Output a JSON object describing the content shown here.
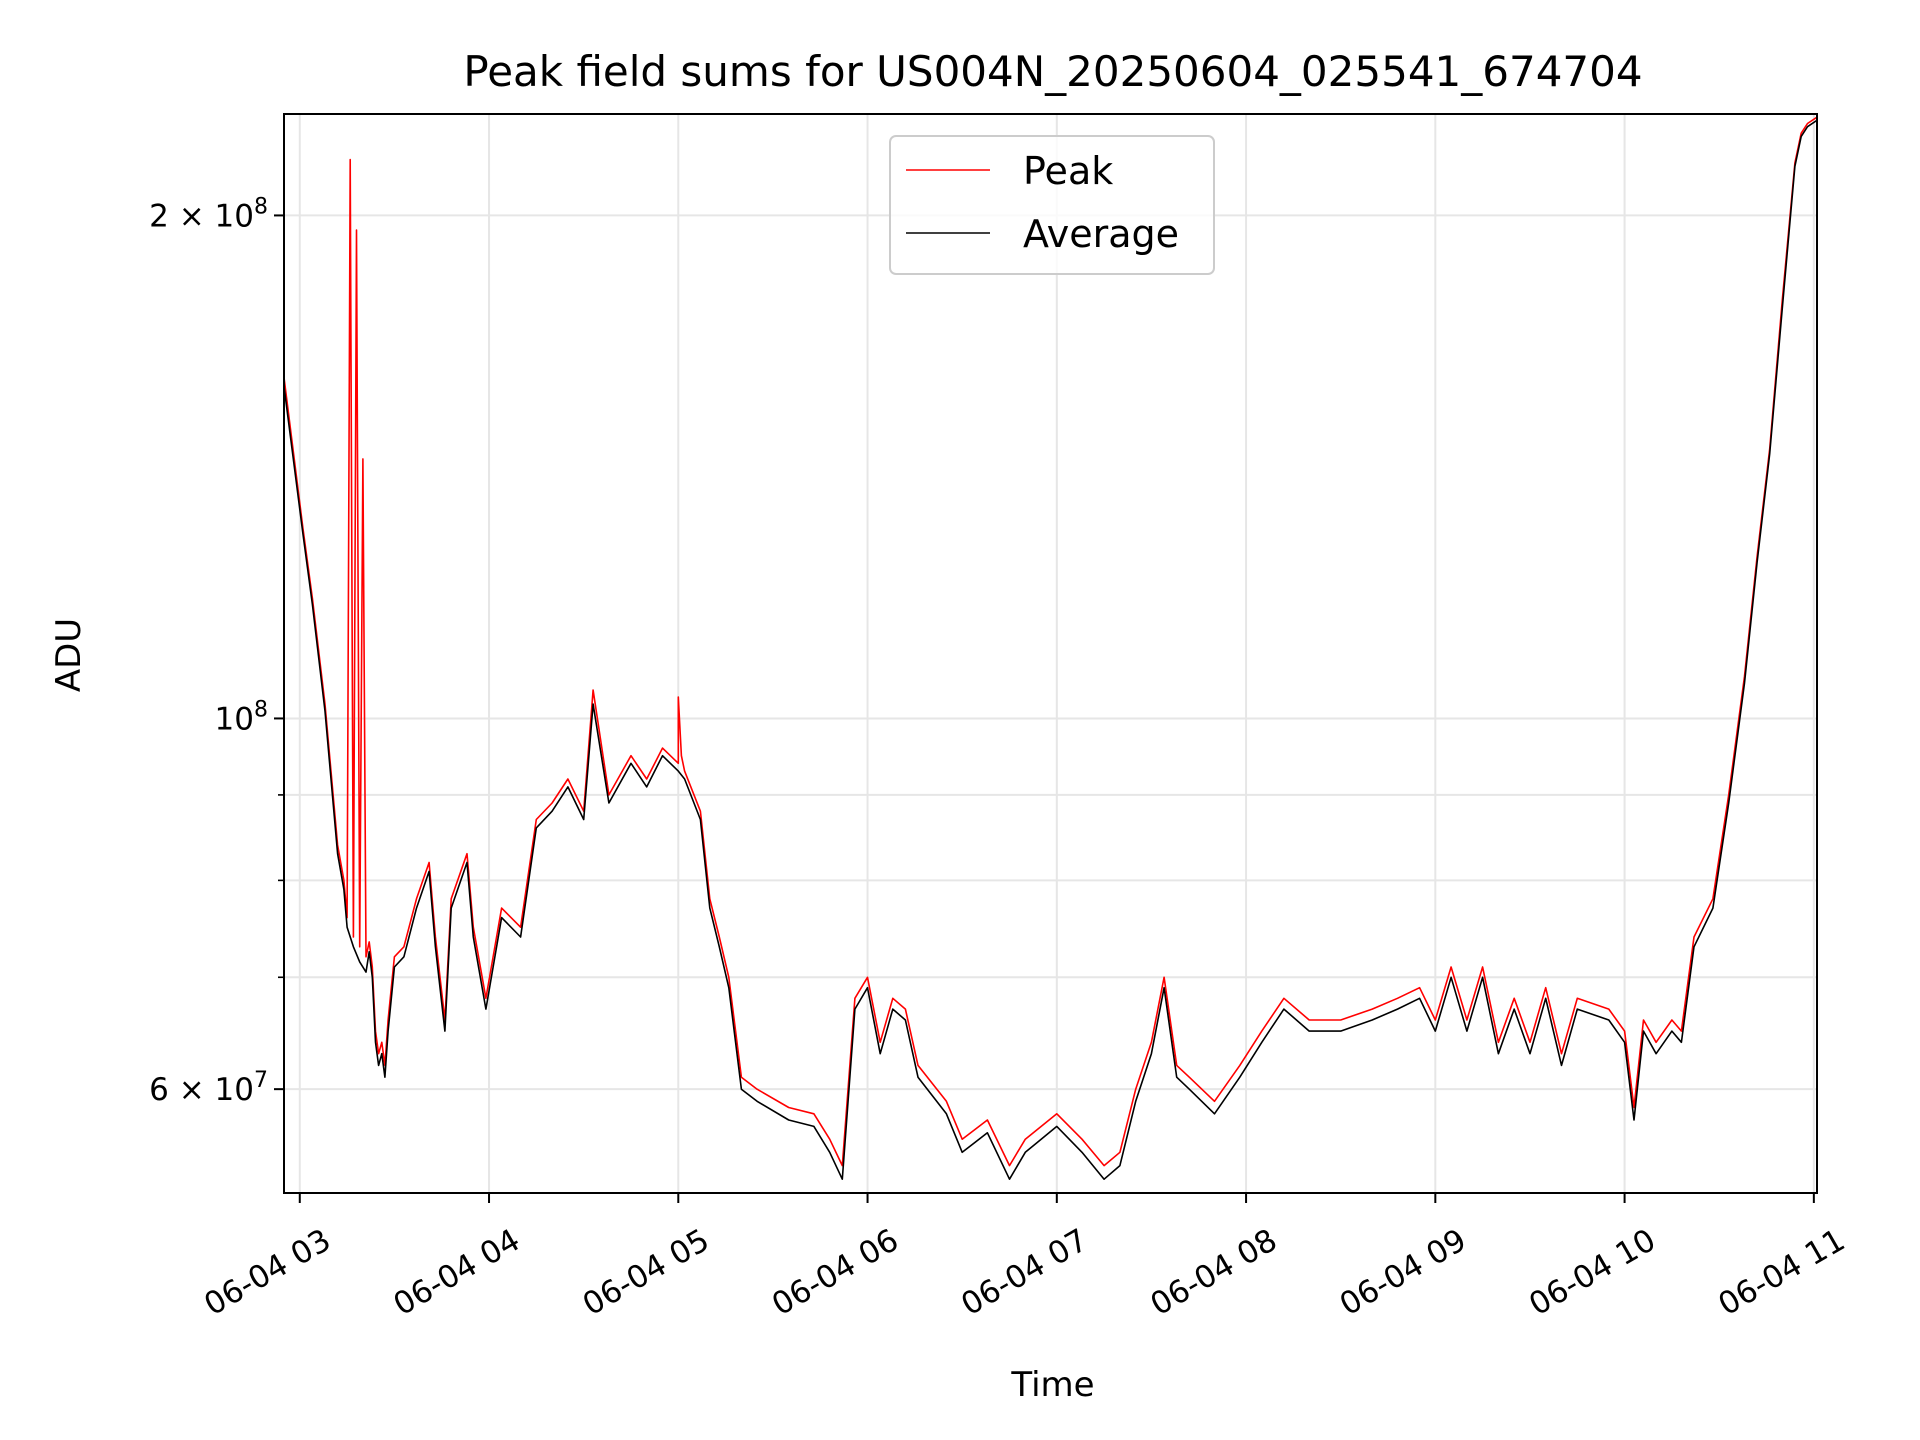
{
  "chart_data": {
    "type": "line",
    "title": "Peak field sums for US004N_20250604_025541_674704",
    "xlabel": "Time",
    "ylabel": "ADU",
    "y_scale": "log",
    "ylim": [
      52000000,
      230000000
    ],
    "xlim": [
      "2025-06-04 02:55",
      "2025-06-04 11:01"
    ],
    "x_ticks": [
      "06-04 03",
      "06-04 04",
      "06-04 05",
      "06-04 06",
      "06-04 07",
      "06-04 08",
      "06-04 09",
      "06-04 10",
      "06-04 11"
    ],
    "x_tick_times": [
      "2025-06-04 03:00",
      "2025-06-04 04:00",
      "2025-06-04 05:00",
      "2025-06-04 06:00",
      "2025-06-04 07:00",
      "2025-06-04 08:00",
      "2025-06-04 09:00",
      "2025-06-04 10:00",
      "2025-06-04 11:00"
    ],
    "y_ticks_major": [
      {
        "value": 60000000,
        "mantissa": "6",
        "exponent": "7"
      },
      {
        "value": 100000000,
        "mantissa": "",
        "exponent": "8"
      },
      {
        "value": 200000000,
        "mantissa": "2",
        "exponent": "8"
      }
    ],
    "y_ticks_minor": [
      70000000,
      80000000,
      90000000
    ],
    "grid": true,
    "legend_position": "top-center",
    "series": [
      {
        "name": "Peak",
        "color": "#ff0000",
        "x": [
          "2025-06-04 02:55",
          "2025-06-04 03:01",
          "2025-06-04 03:04",
          "2025-06-04 03:08",
          "2025-06-04 03:12",
          "2025-06-04 03:14",
          "2025-06-04 03:15",
          "2025-06-04 03:16",
          "2025-06-04 03:17",
          "2025-06-04 03:18",
          "2025-06-04 03:19",
          "2025-06-04 03:20",
          "2025-06-04 03:21",
          "2025-06-04 03:22",
          "2025-06-04 03:23",
          "2025-06-04 03:24",
          "2025-06-04 03:25",
          "2025-06-04 03:26",
          "2025-06-04 03:27",
          "2025-06-04 03:28",
          "2025-06-04 03:30",
          "2025-06-04 03:33",
          "2025-06-04 03:37",
          "2025-06-04 03:41",
          "2025-06-04 03:43",
          "2025-06-04 03:46",
          "2025-06-04 03:48",
          "2025-06-04 03:53",
          "2025-06-04 03:55",
          "2025-06-04 03:59",
          "2025-06-04 04:04",
          "2025-06-04 04:10",
          "2025-06-04 04:15",
          "2025-06-04 04:20",
          "2025-06-04 04:25",
          "2025-06-04 04:30",
          "2025-06-04 04:33",
          "2025-06-04 04:38",
          "2025-06-04 04:45",
          "2025-06-04 04:50",
          "2025-06-04 04:55",
          "2025-06-04 05:00",
          "2025-06-04 05:00",
          "2025-06-04 05:01",
          "2025-06-04 05:02",
          "2025-06-04 05:07",
          "2025-06-04 05:10",
          "2025-06-04 05:13",
          "2025-06-04 05:16",
          "2025-06-04 05:20",
          "2025-06-04 05:25",
          "2025-06-04 05:35",
          "2025-06-04 05:43",
          "2025-06-04 05:48",
          "2025-06-04 05:52",
          "2025-06-04 05:56",
          "2025-06-04 06:00",
          "2025-06-04 06:04",
          "2025-06-04 06:08",
          "2025-06-04 06:12",
          "2025-06-04 06:16",
          "2025-06-04 06:25",
          "2025-06-04 06:30",
          "2025-06-04 06:38",
          "2025-06-04 06:45",
          "2025-06-04 06:50",
          "2025-06-04 07:00",
          "2025-06-04 07:08",
          "2025-06-04 07:15",
          "2025-06-04 07:20",
          "2025-06-04 07:25",
          "2025-06-04 07:30",
          "2025-06-04 07:34",
          "2025-06-04 07:38",
          "2025-06-04 07:42",
          "2025-06-04 07:50",
          "2025-06-04 07:58",
          "2025-06-04 08:05",
          "2025-06-04 08:12",
          "2025-06-04 08:20",
          "2025-06-04 08:30",
          "2025-06-04 08:40",
          "2025-06-04 08:48",
          "2025-06-04 08:55",
          "2025-06-04 09:00",
          "2025-06-04 09:05",
          "2025-06-04 09:10",
          "2025-06-04 09:15",
          "2025-06-04 09:20",
          "2025-06-04 09:25",
          "2025-06-04 09:30",
          "2025-06-04 09:35",
          "2025-06-04 09:40",
          "2025-06-04 09:45",
          "2025-06-04 09:55",
          "2025-06-04 10:00",
          "2025-06-04 10:03",
          "2025-06-04 10:06",
          "2025-06-04 10:10",
          "2025-06-04 10:15",
          "2025-06-04 10:18",
          "2025-06-04 10:22",
          "2025-06-04 10:28",
          "2025-06-04 10:33",
          "2025-06-04 10:38",
          "2025-06-04 10:42",
          "2025-06-04 10:46",
          "2025-06-04 10:50",
          "2025-06-04 10:54",
          "2025-06-04 10:56",
          "2025-06-04 10:58",
          "2025-06-04 11:01"
        ],
        "values": [
          160000000,
          130000000,
          118000000,
          102000000,
          84000000,
          80000000,
          76000000,
          216000000,
          74000000,
          196000000,
          73000000,
          143000000,
          72000000,
          73500000,
          71000000,
          65000000,
          63000000,
          64000000,
          62000000,
          66000000,
          72000000,
          73000000,
          78000000,
          82000000,
          74000000,
          66000000,
          78000000,
          83000000,
          75000000,
          68000000,
          77000000,
          75000000,
          87000000,
          89000000,
          92000000,
          88000000,
          104000000,
          90000000,
          95000000,
          92000000,
          96000000,
          94000000,
          103000000,
          95000000,
          93000000,
          88000000,
          78000000,
          74000000,
          70000000,
          61000000,
          60000000,
          58500000,
          58000000,
          56000000,
          54000000,
          68000000,
          70000000,
          64000000,
          68000000,
          67000000,
          62000000,
          59000000,
          56000000,
          57500000,
          54000000,
          56000000,
          58000000,
          56000000,
          54000000,
          55000000,
          60000000,
          64000000,
          70000000,
          62000000,
          61000000,
          59000000,
          62000000,
          65000000,
          68000000,
          66000000,
          66000000,
          67000000,
          68000000,
          69000000,
          66000000,
          71000000,
          66000000,
          71000000,
          64000000,
          68000000,
          64000000,
          69000000,
          63000000,
          68000000,
          67000000,
          65000000,
          58500000,
          66000000,
          64000000,
          66000000,
          65000000,
          74000000,
          78000000,
          90000000,
          106000000,
          125000000,
          145000000,
          178000000,
          215000000,
          224000000,
          227000000,
          229000000
        ]
      },
      {
        "name": "Average",
        "color": "#000000",
        "x": [
          "2025-06-04 02:55",
          "2025-06-04 03:01",
          "2025-06-04 03:04",
          "2025-06-04 03:08",
          "2025-06-04 03:12",
          "2025-06-04 03:14",
          "2025-06-04 03:15",
          "2025-06-04 03:17",
          "2025-06-04 03:19",
          "2025-06-04 03:21",
          "2025-06-04 03:22",
          "2025-06-04 03:23",
          "2025-06-04 03:24",
          "2025-06-04 03:25",
          "2025-06-04 03:26",
          "2025-06-04 03:27",
          "2025-06-04 03:28",
          "2025-06-04 03:30",
          "2025-06-04 03:33",
          "2025-06-04 03:37",
          "2025-06-04 03:41",
          "2025-06-04 03:43",
          "2025-06-04 03:46",
          "2025-06-04 03:48",
          "2025-06-04 03:53",
          "2025-06-04 03:55",
          "2025-06-04 03:59",
          "2025-06-04 04:04",
          "2025-06-04 04:10",
          "2025-06-04 04:15",
          "2025-06-04 04:20",
          "2025-06-04 04:25",
          "2025-06-04 04:30",
          "2025-06-04 04:33",
          "2025-06-04 04:38",
          "2025-06-04 04:45",
          "2025-06-04 04:50",
          "2025-06-04 04:55",
          "2025-06-04 05:00",
          "2025-06-04 05:02",
          "2025-06-04 05:07",
          "2025-06-04 05:10",
          "2025-06-04 05:13",
          "2025-06-04 05:16",
          "2025-06-04 05:20",
          "2025-06-04 05:25",
          "2025-06-04 05:35",
          "2025-06-04 05:43",
          "2025-06-04 05:48",
          "2025-06-04 05:52",
          "2025-06-04 05:56",
          "2025-06-04 06:00",
          "2025-06-04 06:04",
          "2025-06-04 06:08",
          "2025-06-04 06:12",
          "2025-06-04 06:16",
          "2025-06-04 06:25",
          "2025-06-04 06:30",
          "2025-06-04 06:38",
          "2025-06-04 06:45",
          "2025-06-04 06:50",
          "2025-06-04 07:00",
          "2025-06-04 07:08",
          "2025-06-04 07:15",
          "2025-06-04 07:20",
          "2025-06-04 07:25",
          "2025-06-04 07:30",
          "2025-06-04 07:34",
          "2025-06-04 07:38",
          "2025-06-04 07:42",
          "2025-06-04 07:50",
          "2025-06-04 07:58",
          "2025-06-04 08:05",
          "2025-06-04 08:12",
          "2025-06-04 08:20",
          "2025-06-04 08:30",
          "2025-06-04 08:40",
          "2025-06-04 08:48",
          "2025-06-04 08:55",
          "2025-06-04 09:00",
          "2025-06-04 09:05",
          "2025-06-04 09:10",
          "2025-06-04 09:15",
          "2025-06-04 09:20",
          "2025-06-04 09:25",
          "2025-06-04 09:30",
          "2025-06-04 09:35",
          "2025-06-04 09:40",
          "2025-06-04 09:45",
          "2025-06-04 09:55",
          "2025-06-04 10:00",
          "2025-06-04 10:03",
          "2025-06-04 10:06",
          "2025-06-04 10:10",
          "2025-06-04 10:15",
          "2025-06-04 10:18",
          "2025-06-04 10:22",
          "2025-06-04 10:28",
          "2025-06-04 10:33",
          "2025-06-04 10:38",
          "2025-06-04 10:42",
          "2025-06-04 10:46",
          "2025-06-04 10:50",
          "2025-06-04 10:54",
          "2025-06-04 10:56",
          "2025-06-04 10:58",
          "2025-06-04 11:01"
        ],
        "values": [
          158000000,
          129000000,
          117000000,
          101000000,
          83000000,
          79000000,
          75000000,
          73000000,
          71500000,
          70500000,
          72500000,
          70000000,
          64000000,
          62000000,
          63000000,
          61000000,
          65000000,
          71000000,
          72000000,
          77000000,
          81000000,
          73000000,
          65000000,
          77000000,
          82000000,
          74000000,
          67000000,
          76000000,
          74000000,
          86000000,
          88000000,
          91000000,
          87000000,
          102000000,
          89000000,
          94000000,
          91000000,
          95000000,
          93000000,
          92000000,
          87000000,
          77000000,
          73000000,
          69000000,
          60000000,
          59000000,
          57500000,
          57000000,
          55000000,
          53000000,
          67000000,
          69000000,
          63000000,
          67000000,
          66000000,
          61000000,
          58000000,
          55000000,
          56500000,
          53000000,
          55000000,
          57000000,
          55000000,
          53000000,
          54000000,
          59000000,
          63000000,
          69000000,
          61000000,
          60000000,
          58000000,
          61000000,
          64000000,
          67000000,
          65000000,
          65000000,
          66000000,
          67000000,
          68000000,
          65000000,
          70000000,
          65000000,
          70000000,
          63000000,
          67000000,
          63000000,
          68000000,
          62000000,
          67000000,
          66000000,
          64000000,
          57500000,
          65000000,
          63000000,
          65000000,
          64000000,
          73000000,
          77000000,
          89000000,
          105000000,
          124000000,
          144000000,
          176000000,
          214000000,
          223000000,
          226000000,
          228000000
        ]
      }
    ]
  }
}
